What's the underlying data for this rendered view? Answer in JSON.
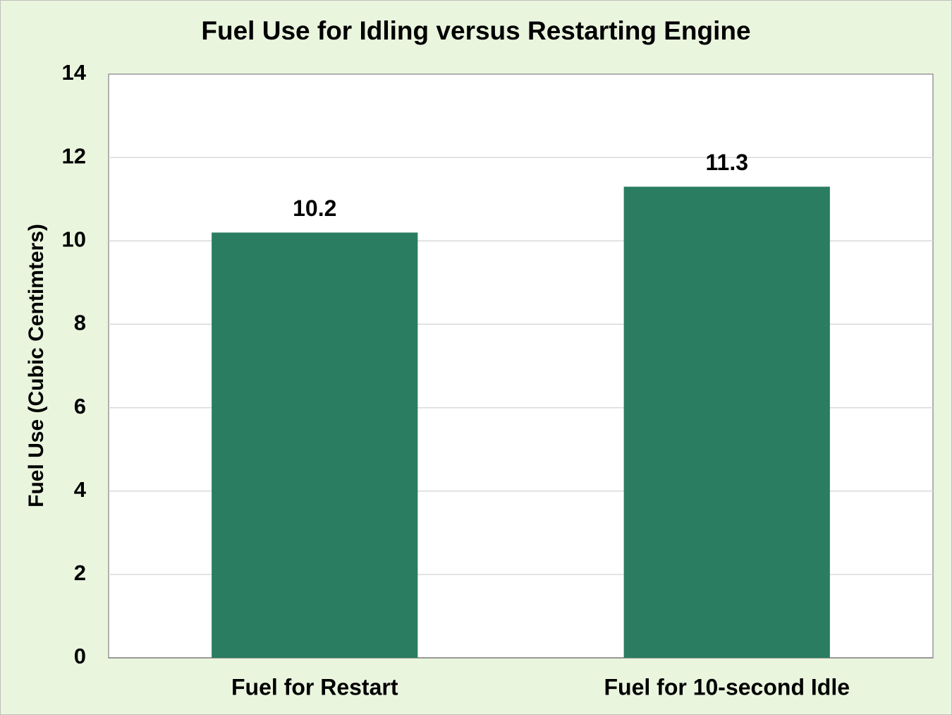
{
  "chart_data": {
    "type": "bar",
    "title": "Fuel Use for Idling versus Restarting Engine",
    "y_label": "Fuel Use (Cubic Centimters)",
    "categories": [
      "Fuel for Restart",
      "Fuel for 10-second Idle"
    ],
    "values": [
      10.2,
      11.3
    ],
    "color": "#2a7d60",
    "ylim": [
      0,
      14
    ],
    "yticks": [
      0,
      2,
      4,
      6,
      8,
      10,
      12,
      14
    ],
    "grid": true,
    "data_labels": true
  }
}
